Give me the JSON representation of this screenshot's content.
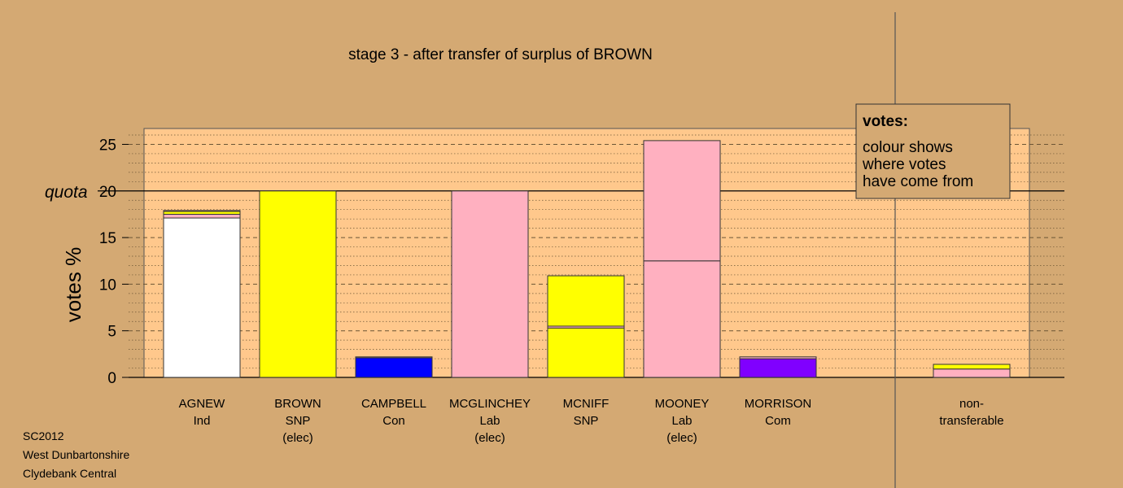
{
  "chart_data": {
    "type": "bar",
    "stacked": true,
    "title": "stage 3 - after transfer of surplus of BROWN",
    "ylabel": "votes %",
    "ylim": [
      0,
      26.7
    ],
    "yticks": [
      0,
      5,
      10,
      15,
      20,
      25
    ],
    "quota": 20,
    "quota_label": "quota",
    "grid": true,
    "categories": [
      {
        "name": "AGNEW",
        "party": "Ind",
        "status": ""
      },
      {
        "name": "BROWN",
        "party": "SNP",
        "status": "(elec)"
      },
      {
        "name": "CAMPBELL",
        "party": "Con",
        "status": ""
      },
      {
        "name": "MCGLINCHEY",
        "party": "Lab",
        "status": "(elec)"
      },
      {
        "name": "MCNIFF",
        "party": "SNP",
        "status": ""
      },
      {
        "name": "MOONEY",
        "party": "Lab",
        "status": "(elec)"
      },
      {
        "name": "MORRISON",
        "party": "Com",
        "status": ""
      }
    ],
    "bars": [
      [
        {
          "value": 17.1,
          "color": "#ffffff"
        },
        {
          "value": 0.4,
          "color": "#ffb0c0"
        },
        {
          "value": 0.3,
          "color": "#ffff00"
        },
        {
          "value": 0.1,
          "color": "#ffb0c0"
        }
      ],
      [
        {
          "value": 20.0,
          "color": "#ffff00"
        }
      ],
      [
        {
          "value": 2.1,
          "color": "#0000ff"
        },
        {
          "value": 0.1,
          "color": "#ffb0c0"
        }
      ],
      [
        {
          "value": 20.0,
          "color": "#ffb0c0"
        }
      ],
      [
        {
          "value": 5.3,
          "color": "#ffff00"
        },
        {
          "value": 0.2,
          "color": "#ffb0c0"
        },
        {
          "value": 5.4,
          "color": "#ffff00"
        }
      ],
      [
        {
          "value": 12.5,
          "color": "#ffb0c0"
        },
        {
          "value": 12.9,
          "color": "#ffb0c0"
        }
      ],
      [
        {
          "value": 2.0,
          "color": "#8000ff"
        },
        {
          "value": 0.2,
          "color": "#ffb0c0"
        }
      ]
    ],
    "nontransferable": {
      "label_lines": [
        "non-",
        "transferable"
      ],
      "segments": [
        {
          "value": 0.9,
          "color": "#ffb0c0"
        },
        {
          "value": 0.5,
          "color": "#ffff00"
        }
      ]
    },
    "legend": {
      "position": "top-right",
      "title": "votes:",
      "lines": [
        "colour shows",
        "where votes",
        "have come from"
      ]
    }
  },
  "footer": {
    "lines": [
      "SC2012",
      "West Dunbartonshire",
      "Clydebank Central"
    ]
  },
  "colors": {
    "background": "#d4a973",
    "plot_area": "#ffc88c"
  }
}
